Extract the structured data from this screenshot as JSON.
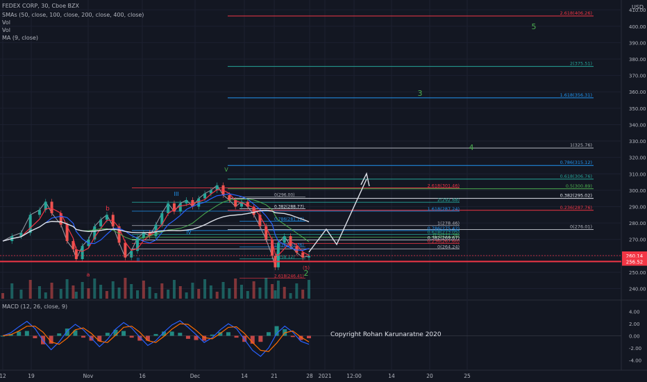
{
  "header": {
    "symbol": "FEDEX CORP, 30, Cboe BZX",
    "indicators": [
      "SMAs (50, close, 100, close, 200, close, 400, close)",
      "Vol",
      "Vol",
      "MA (9, close)"
    ],
    "macd_label": "MACD (12, 26, close, 9)",
    "currency": "USD"
  },
  "copyright": "Copyright Rohan Karunaratne 2020",
  "colors": {
    "background": "#131722",
    "up": "#26a69a",
    "down": "#ef5350",
    "price_line": "#f23645",
    "elliott": "#4caf50"
  },
  "chart_data": {
    "type": "candlestick",
    "y_axis": {
      "range": [
        236,
        416
      ],
      "ticks": [
        "410.00",
        "400.00",
        "390.00",
        "380.00",
        "370.00",
        "360.00",
        "350.00",
        "340.00",
        "330.00",
        "320.00",
        "310.00",
        "300.00",
        "290.00",
        "280.00",
        "270.00",
        "260.00",
        "250.00",
        "240.00"
      ]
    },
    "x_axis": {
      "ticks": [
        "12",
        "19",
        "Nov",
        "16",
        "Dec",
        "14",
        "21",
        "28",
        "2021",
        "12:00",
        "14",
        "20",
        "25"
      ]
    },
    "current_prices": [
      {
        "label": "260.14",
        "value": 260.14,
        "color": "#f23645"
      },
      {
        "label": "256.52",
        "value": 256.52,
        "color": "#f23645"
      }
    ],
    "price_series": {
      "x_range": [
        0,
        100
      ],
      "points": [
        [
          0,
          269
        ],
        [
          3,
          272
        ],
        [
          6,
          274
        ],
        [
          9,
          285
        ],
        [
          12,
          288
        ],
        [
          14,
          293
        ],
        [
          16,
          286
        ],
        [
          19,
          279
        ],
        [
          21,
          269
        ],
        [
          23,
          264
        ],
        [
          24,
          258
        ],
        [
          26,
          266
        ],
        [
          28,
          270
        ],
        [
          30,
          278
        ],
        [
          32,
          282
        ],
        [
          34,
          285
        ],
        [
          36,
          278
        ],
        [
          38,
          268
        ],
        [
          40,
          259
        ],
        [
          42,
          263
        ],
        [
          44,
          271
        ],
        [
          46,
          274
        ],
        [
          48,
          272
        ],
        [
          50,
          279
        ],
        [
          52,
          286
        ],
        [
          54,
          292
        ],
        [
          56,
          287
        ],
        [
          58,
          292
        ],
        [
          60,
          294
        ],
        [
          62,
          290
        ],
        [
          64,
          295
        ],
        [
          66,
          298
        ],
        [
          68,
          300
        ],
        [
          70,
          303
        ],
        [
          72,
          297
        ],
        [
          74,
          294
        ],
        [
          76,
          290
        ],
        [
          78,
          293
        ],
        [
          80,
          290
        ],
        [
          82,
          285
        ],
        [
          84,
          278
        ],
        [
          86,
          270
        ],
        [
          88,
          260
        ],
        [
          89,
          253
        ],
        [
          90,
          268
        ],
        [
          92,
          272
        ],
        [
          94,
          266
        ],
        [
          96,
          262
        ],
        [
          98,
          259
        ],
        [
          100,
          260
        ]
      ]
    },
    "fib_levels": [
      {
        "label": "2.618(406.26)",
        "value": 406.26,
        "color": "#f23645"
      },
      {
        "label": "2(375.51)",
        "value": 375.51,
        "color": "#26a69a"
      },
      {
        "label": "1.618(356.31)",
        "value": 356.31,
        "color": "#2196f3"
      },
      {
        "label": "1(325.76)",
        "value": 325.76,
        "color": "#b2b5be"
      },
      {
        "label": "0.786(315.12)",
        "value": 315.12,
        "color": "#2196f3"
      },
      {
        "label": "0.618(306.76)",
        "value": 306.76,
        "color": "#26a69a"
      },
      {
        "label": "0.5(300.89)",
        "value": 300.89,
        "color": "#4caf50"
      },
      {
        "label": "0.382(295.02)",
        "value": 295.02,
        "color": "#e0e3eb"
      },
      {
        "label": "0.236(287.76)",
        "value": 287.76,
        "color": "#f23645"
      },
      {
        "label": "0(276.01)",
        "value": 276.01,
        "color": "#b2b5be"
      }
    ],
    "inner_fib_levels": [
      {
        "label": "2.618(301.46)",
        "value": 301.46,
        "color": "#f23645"
      },
      {
        "label": "2(292.68)",
        "value": 292.68,
        "color": "#26a69a"
      },
      {
        "label": "1.618(287.24)",
        "value": 287.24,
        "color": "#2196f3"
      },
      {
        "label": "1(278.46)",
        "value": 278.46,
        "color": "#b2b5be"
      },
      {
        "label": "0.786(275.42)",
        "value": 275.42,
        "color": "#2196f3"
      },
      {
        "label": "0.618(273.05)",
        "value": 273.05,
        "color": "#26a69a"
      },
      {
        "label": "0.5(271.38)",
        "value": 271.38,
        "color": "#4caf50"
      },
      {
        "label": "0.382(269.67)",
        "value": 269.67,
        "color": "#e0e3eb"
      },
      {
        "label": "0.236(267.60)",
        "value": 267.6,
        "color": "#f23645"
      },
      {
        "label": "0(264.24)",
        "value": 264.24,
        "color": "#b2b5be"
      }
    ],
    "small_fib_levels": [
      {
        "label": "0(296.00)",
        "value": 296.0,
        "color": "#b2b5be"
      },
      {
        "label": "0.382(288.77)",
        "value": 288.77,
        "color": "#e0e3eb"
      },
      {
        "label": "0.786(281.12)",
        "value": 281.12,
        "color": "#2196f3"
      },
      {
        "label": "1.618(265.36)",
        "value": 265.36,
        "color": "#2196f3"
      },
      {
        "label": "2(258.12)",
        "value": 258.12,
        "color": "#26a69a"
      },
      {
        "label": "2.618(246.41)",
        "value": 246.41,
        "color": "#f23645"
      }
    ],
    "wave_labels": [
      {
        "text": "5",
        "color": "#4caf50"
      },
      {
        "text": "3",
        "color": "#4caf50"
      },
      {
        "text": "4",
        "color": "#4caf50"
      },
      {
        "text": "2",
        "color": "#4caf50"
      },
      {
        "text": "III",
        "color": "#2196f3"
      },
      {
        "text": "IV",
        "color": "#2196f3"
      },
      {
        "text": "II",
        "color": "#2196f3"
      },
      {
        "text": "V",
        "color": "#4caf50"
      },
      {
        "text": "b",
        "color": "#f23645"
      },
      {
        "text": "a",
        "color": "#f23645"
      },
      {
        "text": "(5)",
        "color": "#f23645"
      }
    ],
    "macd": {
      "y_ticks": [
        "4.00",
        "2.00",
        "0.00",
        "-2.00",
        "-4.00"
      ],
      "y_range": [
        -5,
        5
      ],
      "macd_line": [
        0,
        0.5,
        1.5,
        2.4,
        1.2,
        -0.8,
        -2.3,
        -1.0,
        0.8,
        1.9,
        1.0,
        -0.4,
        -1.8,
        -0.6,
        1.1,
        2.2,
        1.3,
        -0.2,
        -1.6,
        -0.8,
        0.6,
        1.8,
        2.5,
        1.4,
        0.2,
        -1.1,
        -0.3,
        1.0,
        2.0,
        1.2,
        -0.6,
        -2.4,
        -3.4,
        -2.0,
        0.4,
        1.6,
        0.6,
        -0.9,
        -1.4
      ],
      "signal_line": [
        0,
        0.2,
        0.8,
        1.6,
        1.6,
        0.6,
        -1.0,
        -1.4,
        -0.4,
        1.0,
        1.3,
        0.4,
        -0.9,
        -1.1,
        0.1,
        1.4,
        1.6,
        0.6,
        -0.8,
        -1.1,
        -0.1,
        1.1,
        2.0,
        1.9,
        0.9,
        -0.3,
        -0.5,
        0.4,
        1.4,
        1.5,
        0.4,
        -1.1,
        -2.4,
        -2.6,
        -1.2,
        0.5,
        0.8,
        -0.2,
        -1.0
      ]
    }
  }
}
